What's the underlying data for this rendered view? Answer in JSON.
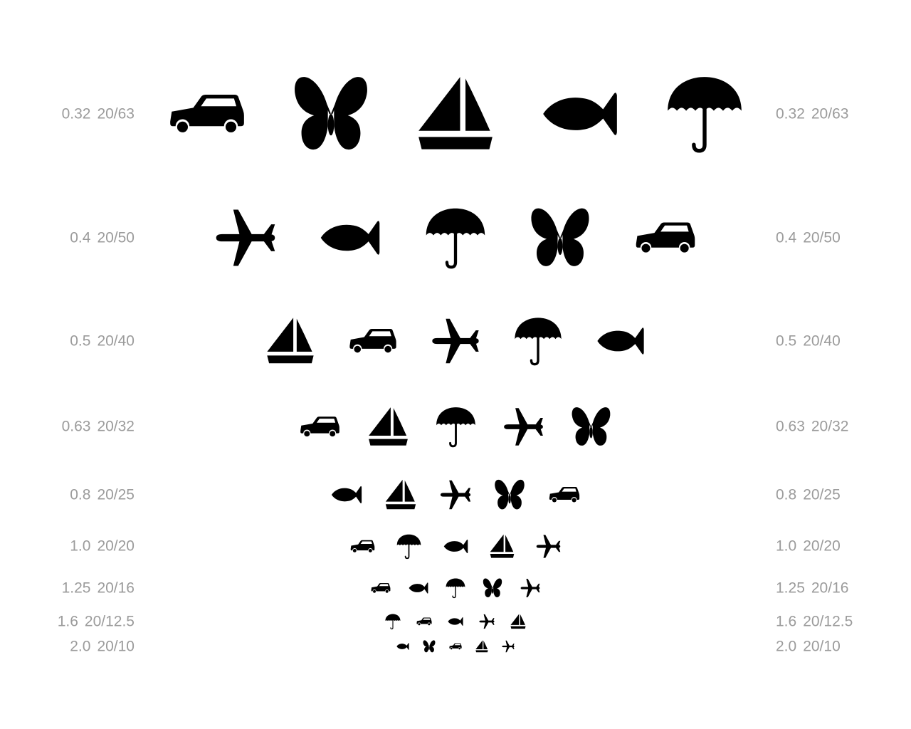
{
  "chart": {
    "rows": [
      {
        "decimal": "0.32",
        "snellen": "20/63",
        "optotypes": [
          "car-icon",
          "butterfly-icon",
          "sailboat-icon",
          "fish-icon",
          "umbrella-icon"
        ]
      },
      {
        "decimal": "0.4",
        "snellen": "20/50",
        "optotypes": [
          "airplane-icon",
          "fish-icon",
          "umbrella-icon",
          "butterfly-icon",
          "car-icon"
        ]
      },
      {
        "decimal": "0.5",
        "snellen": "20/40",
        "optotypes": [
          "sailboat-icon",
          "car-icon",
          "airplane-icon",
          "umbrella-icon",
          "fish-icon"
        ]
      },
      {
        "decimal": "0.63",
        "snellen": "20/32",
        "optotypes": [
          "car-icon",
          "sailboat-icon",
          "umbrella-icon",
          "airplane-icon",
          "butterfly-icon"
        ]
      },
      {
        "decimal": "0.8",
        "snellen": "20/25",
        "optotypes": [
          "fish-icon",
          "sailboat-icon",
          "airplane-icon",
          "butterfly-icon",
          "car-icon"
        ]
      },
      {
        "decimal": "1.0",
        "snellen": "20/20",
        "optotypes": [
          "car-icon",
          "umbrella-icon",
          "fish-icon",
          "sailboat-icon",
          "airplane-icon"
        ]
      },
      {
        "decimal": "1.25",
        "snellen": "20/16",
        "optotypes": [
          "car-icon",
          "fish-icon",
          "umbrella-icon",
          "butterfly-icon",
          "airplane-icon"
        ]
      },
      {
        "decimal": "1.6",
        "snellen": "20/12.5",
        "optotypes": [
          "umbrella-icon",
          "car-icon",
          "fish-icon",
          "airplane-icon",
          "sailboat-icon"
        ]
      },
      {
        "decimal": "2.0",
        "snellen": "20/10",
        "optotypes": [
          "fish-icon",
          "butterfly-icon",
          "car-icon",
          "sailboat-icon",
          "airplane-icon"
        ]
      }
    ]
  },
  "colors": {
    "label": "#9b9b9b",
    "optotype": "#000000",
    "background": "#ffffff"
  }
}
